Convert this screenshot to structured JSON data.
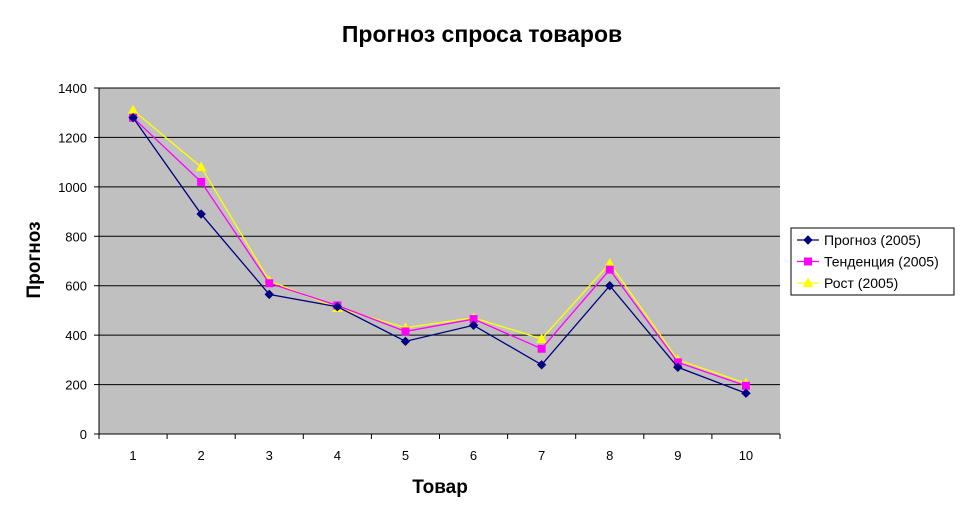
{
  "chart_data": {
    "type": "line",
    "title": "Прогноз спроса товаров",
    "xlabel": "Товар",
    "ylabel": "Прогноз",
    "x": [
      1,
      2,
      3,
      4,
      5,
      6,
      7,
      8,
      9,
      10
    ],
    "ylim": [
      0,
      1400
    ],
    "yticks": [
      0,
      200,
      400,
      600,
      800,
      1000,
      1200,
      1400
    ],
    "grid": true,
    "legend_position": "right",
    "plot_background": "#c0c0c0",
    "series": [
      {
        "name": "Прогноз (2005)",
        "color": "#000080",
        "marker": "diamond",
        "values": [
          1280,
          890,
          565,
          515,
          375,
          440,
          280,
          600,
          270,
          165
        ]
      },
      {
        "name": "Тенденция (2005)",
        "color": "#ff00ff",
        "marker": "square",
        "values": [
          1280,
          1020,
          610,
          520,
          415,
          465,
          345,
          665,
          290,
          195
        ]
      },
      {
        "name": "Рост (2005)",
        "color": "#ffff00",
        "marker": "triangle",
        "values": [
          1310,
          1080,
          620,
          510,
          430,
          470,
          385,
          690,
          300,
          205
        ]
      }
    ]
  }
}
